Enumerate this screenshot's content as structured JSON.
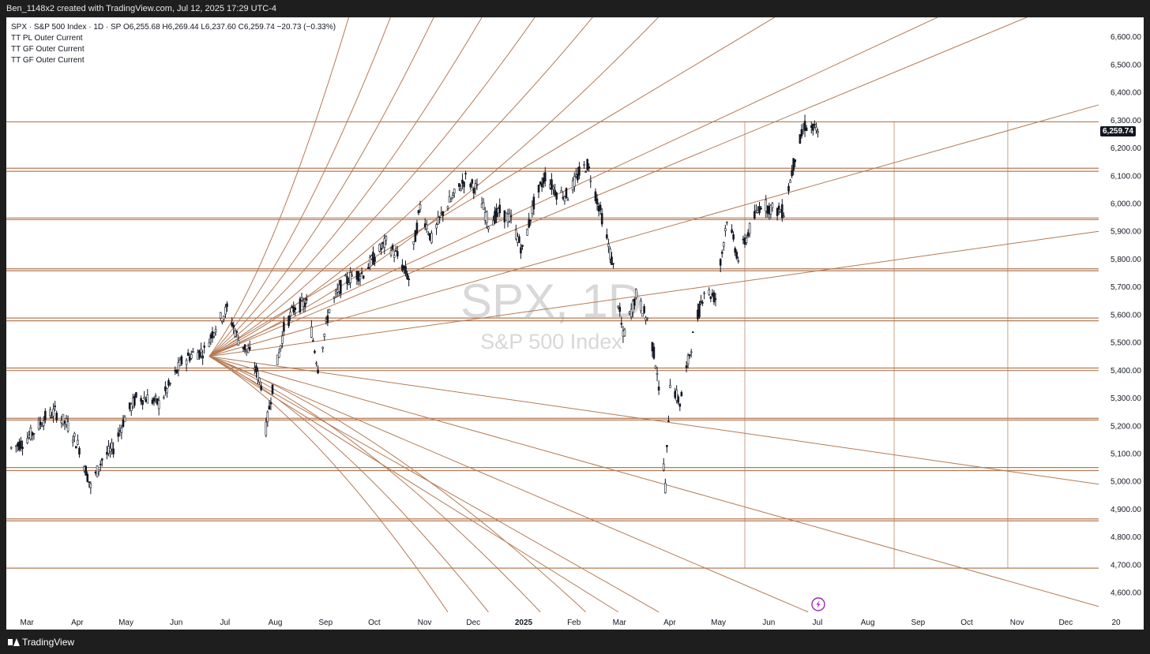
{
  "header": {
    "caption": "Ben_1148x2 created with TradingView.com, Jul 12, 2025 17:29 UTC-4"
  },
  "legend": {
    "symbol_line": "SPX · S&P 500 Index · 1D · SP",
    "ohlc": "O6,255.68  H6,269.44  L6,237.60  C6,259.74  −20.73 (−0.33%)",
    "indicators": [
      "TT PL Outer Current",
      "TT GF Outer Current",
      "TT GF Outer Current"
    ]
  },
  "watermark": {
    "ticker": "SPX, 1D",
    "name": "S&P 500 Index"
  },
  "footer": {
    "brand": "TradingView"
  },
  "colors": {
    "line": "#b57a55",
    "candle": "#131722",
    "background": "#ffffff",
    "chrome": "#1e1e1e",
    "watermark": "#d8d8d8",
    "event_badge": "#9c27b0"
  },
  "icons": [
    "tradingview-logo-icon",
    "lightning-event-icon"
  ],
  "chart_data": {
    "type": "candlestick",
    "title": "SPX · S&P 500 Index · 1D · SP",
    "x_tick_labels": [
      "Mar",
      "Apr",
      "May",
      "Jun",
      "Jul",
      "Aug",
      "Sep",
      "Oct",
      "Nov",
      "Dec",
      "2025",
      "Feb",
      "Mar",
      "Apr",
      "May",
      "Jun",
      "Jul",
      "Aug",
      "Sep",
      "Oct",
      "Nov",
      "Dec",
      "20"
    ],
    "y_tick_labels": [
      "6,600.00",
      "6,500.00",
      "6,400.00",
      "6,300.00",
      "6,200.00",
      "6,100.00",
      "6,000.00",
      "5,900.00",
      "5,800.00",
      "5,700.00",
      "5,600.00",
      "5,500.00",
      "5,400.00",
      "5,300.00",
      "5,200.00",
      "5,100.00",
      "5,000.00",
      "4,900.00",
      "4,800.00",
      "4,700.00",
      "4,600.00"
    ],
    "y_ticks": [
      6600,
      6500,
      6400,
      6300,
      6200,
      6100,
      6000,
      5900,
      5800,
      5700,
      5600,
      5500,
      5400,
      5300,
      5200,
      5100,
      5000,
      4900,
      4800,
      4700,
      4600
    ],
    "ylim": [
      4535,
      6670
    ],
    "last_price": 6259.74,
    "last_price_label": "6,259.74",
    "price_series": [
      [
        "2024-03-01",
        5120
      ],
      [
        "2024-03-08",
        5140
      ],
      [
        "2024-03-15",
        5180
      ],
      [
        "2024-03-22",
        5230
      ],
      [
        "2024-03-28",
        5250
      ],
      [
        "2024-04-05",
        5200
      ],
      [
        "2024-04-12",
        5120
      ],
      [
        "2024-04-19",
        4980
      ],
      [
        "2024-04-26",
        5080
      ],
      [
        "2024-05-03",
        5120
      ],
      [
        "2024-05-10",
        5230
      ],
      [
        "2024-05-17",
        5300
      ],
      [
        "2024-05-24",
        5300
      ],
      [
        "2024-05-31",
        5280
      ],
      [
        "2024-06-07",
        5350
      ],
      [
        "2024-06-14",
        5430
      ],
      [
        "2024-06-21",
        5460
      ],
      [
        "2024-06-28",
        5470
      ],
      [
        "2024-07-05",
        5560
      ],
      [
        "2024-07-12",
        5620
      ],
      [
        "2024-07-19",
        5510
      ],
      [
        "2024-07-26",
        5460
      ],
      [
        "2024-08-02",
        5350
      ],
      [
        "2024-08-05",
        5190
      ],
      [
        "2024-08-09",
        5340
      ],
      [
        "2024-08-16",
        5550
      ],
      [
        "2024-08-23",
        5630
      ],
      [
        "2024-08-30",
        5640
      ],
      [
        "2024-09-06",
        5410
      ],
      [
        "2024-09-13",
        5620
      ],
      [
        "2024-09-20",
        5700
      ],
      [
        "2024-09-27",
        5740
      ],
      [
        "2024-10-04",
        5750
      ],
      [
        "2024-10-11",
        5810
      ],
      [
        "2024-10-18",
        5860
      ],
      [
        "2024-10-25",
        5810
      ],
      [
        "2024-11-01",
        5730
      ],
      [
        "2024-11-08",
        5990
      ],
      [
        "2024-11-15",
        5870
      ],
      [
        "2024-11-22",
        5970
      ],
      [
        "2024-11-29",
        6030
      ],
      [
        "2024-12-06",
        6090
      ],
      [
        "2024-12-13",
        6050
      ],
      [
        "2024-12-20",
        5930
      ],
      [
        "2024-12-27",
        5970
      ],
      [
        "2025-01-03",
        5940
      ],
      [
        "2025-01-10",
        5830
      ],
      [
        "2025-01-17",
        6000
      ],
      [
        "2025-01-24",
        6100
      ],
      [
        "2025-01-31",
        6040
      ],
      [
        "2025-02-07",
        6030
      ],
      [
        "2025-02-14",
        6110
      ],
      [
        "2025-02-19",
        6140
      ],
      [
        "2025-02-28",
        5950
      ],
      [
        "2025-03-07",
        5770
      ],
      [
        "2025-03-13",
        5520
      ],
      [
        "2025-03-21",
        5670
      ],
      [
        "2025-03-28",
        5580
      ],
      [
        "2025-04-03",
        5400
      ],
      [
        "2025-04-08",
        4980
      ],
      [
        "2025-04-11",
        5360
      ],
      [
        "2025-04-17",
        5280
      ],
      [
        "2025-04-25",
        5520
      ],
      [
        "2025-05-02",
        5690
      ],
      [
        "2025-05-09",
        5660
      ],
      [
        "2025-05-16",
        5950
      ],
      [
        "2025-05-23",
        5800
      ],
      [
        "2025-05-30",
        5910
      ],
      [
        "2025-06-06",
        6000
      ],
      [
        "2025-06-13",
        5980
      ],
      [
        "2025-06-20",
        5970
      ],
      [
        "2025-06-27",
        6170
      ],
      [
        "2025-07-03",
        6280
      ],
      [
        "2025-07-11",
        6259.74
      ]
    ],
    "horizontal_levels": [
      6294,
      6127,
      6116,
      5948,
      5942,
      5765,
      5758,
      5588,
      5578,
      5408,
      5399,
      5227,
      5221,
      5050,
      5039,
      4865,
      4858,
      4688
    ],
    "vertical_markers": [
      "2025-05-27",
      "2025-08-27",
      "2025-11-05"
    ],
    "fan_origin": {
      "date": "2024-07-01",
      "value": 5450
    },
    "fan_rays": [
      {
        "date": "2025-11-25",
        "value": 6690
      },
      {
        "date": "2025-09-30",
        "value": 6690
      },
      {
        "date": "2025-06-20",
        "value": 6690
      },
      {
        "date": "2025-12-31",
        "value": 6355
      },
      {
        "date": "2025-12-31",
        "value": 5900
      },
      {
        "date": "2025-12-31",
        "value": 4990
      },
      {
        "date": "2025-12-31",
        "value": 4550
      },
      {
        "date": "2025-07-05",
        "value": 4530
      },
      {
        "date": "2025-04-04",
        "value": 4530
      },
      {
        "date": "2025-03-10",
        "value": 4530
      }
    ],
    "fan_curves": [
      {
        "date": "2024-09-26",
        "value": 6690
      },
      {
        "date": "2024-10-22",
        "value": 6690
      },
      {
        "date": "2024-11-18",
        "value": 6690
      },
      {
        "date": "2024-12-18",
        "value": 6690
      },
      {
        "date": "2025-01-20",
        "value": 6690
      },
      {
        "date": "2025-02-25",
        "value": 6690
      },
      {
        "date": "2025-04-07",
        "value": 6690
      },
      {
        "date": "2024-12-20",
        "value": 4530
      },
      {
        "date": "2025-01-21",
        "value": 4530
      },
      {
        "date": "2025-02-18",
        "value": 4530
      },
      {
        "date": "2024-11-25",
        "value": 4530
      }
    ]
  }
}
